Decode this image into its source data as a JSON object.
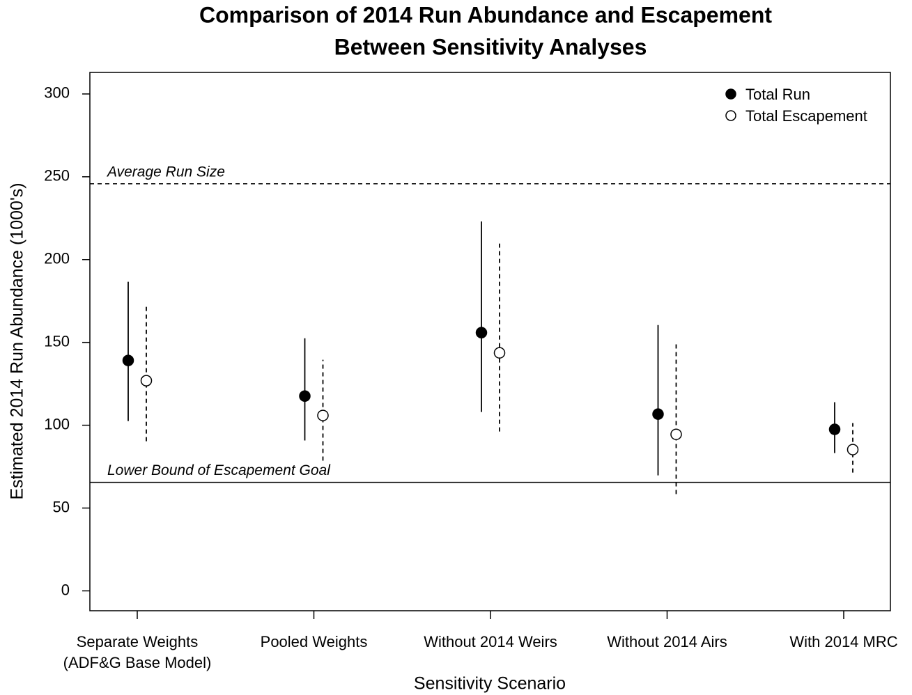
{
  "chart_data": {
    "type": "errorbar",
    "title": [
      "Comparison of 2014 Run Abundance and Escapement",
      "Between Sensitivity Analyses"
    ],
    "x_label": "Sensitivity Scenario",
    "y_label": "Estimated 2014 Run Abundance (1000's)",
    "categories": [
      [
        "Separate Weights",
        "(ADF&G Base Model)"
      ],
      [
        "Pooled Weights"
      ],
      [
        "Without 2014 Weirs"
      ],
      [
        "Without 2014 Airs"
      ],
      [
        "With 2014 MRC"
      ]
    ],
    "series": [
      {
        "name": "Total Run",
        "color": "#000000",
        "marker": "filled",
        "line_style": "solid",
        "values": [
          139.1,
          117.6,
          155.9,
          106.7,
          97.5
        ],
        "lower": [
          102.5,
          90.8,
          108,
          69.7,
          83.2
        ],
        "upper": [
          186.6,
          152.5,
          223,
          160.5,
          113.9
        ]
      },
      {
        "name": "Total Escapement",
        "color": "#000000",
        "marker": "open",
        "line_style": "dashed",
        "values": [
          126.9,
          105.9,
          143.7,
          94.5,
          85.3
        ],
        "lower": [
          90.3,
          78.6,
          96.2,
          58.4,
          71.4
        ],
        "upper": [
          172.7,
          139.5,
          209.7,
          149.2,
          101.3
        ]
      }
    ],
    "reference_lines": [
      {
        "value": 245.8,
        "label": "Average Run Size",
        "line_style": "dashed"
      },
      {
        "value": 65.5,
        "label": "Lower Bound of Escapement Goal",
        "line_style": "solid"
      }
    ],
    "ylim": [
      -12,
      313
    ],
    "yticks": [
      0,
      50,
      100,
      150,
      200,
      250,
      300
    ],
    "legend": "top-right"
  }
}
